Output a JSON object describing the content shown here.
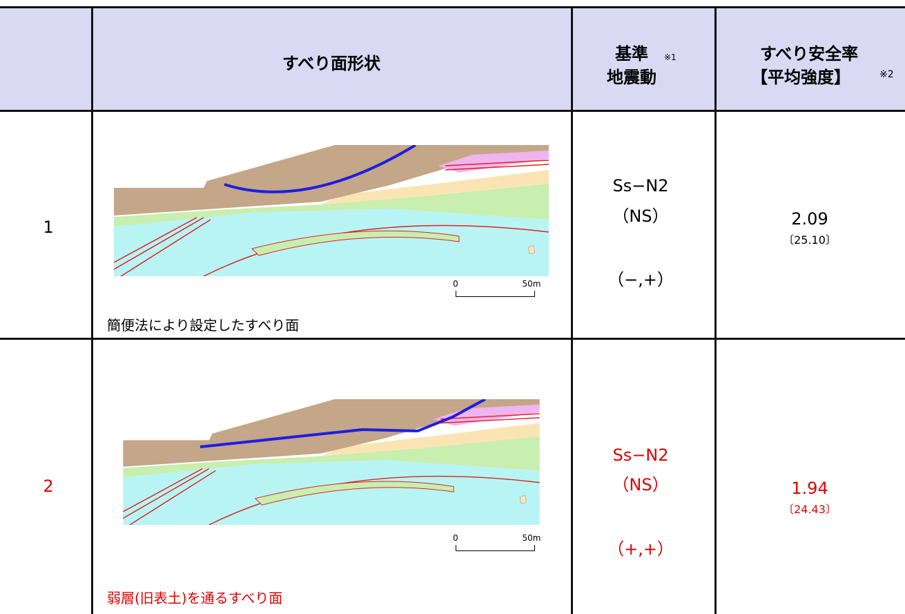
{
  "header": {
    "shape": "すべり面形状",
    "motion": [
      "基準",
      "地震動"
    ],
    "motion_note": "※1",
    "safety": [
      "すべり安全率",
      "【平均強度】"
    ],
    "safety_note": "※2"
  },
  "rows": [
    {
      "no": "1",
      "scale": [
        "0",
        "50m"
      ],
      "caption": "簡便法により設定したすべり面",
      "motion": [
        "Ss−N2",
        "（NS）",
        "（−,+）"
      ],
      "factor": "2.09",
      "factor_avg": "〔25.10〕"
    },
    {
      "no": "2",
      "scale": [
        "0",
        "50m"
      ],
      "caption": "弱層(旧表土)を通るすべり面",
      "motion": [
        "Ss−N2",
        "（NS）",
        "（+,+）"
      ],
      "factor": "1.94",
      "factor_avg": "〔24.43〕"
    }
  ]
}
